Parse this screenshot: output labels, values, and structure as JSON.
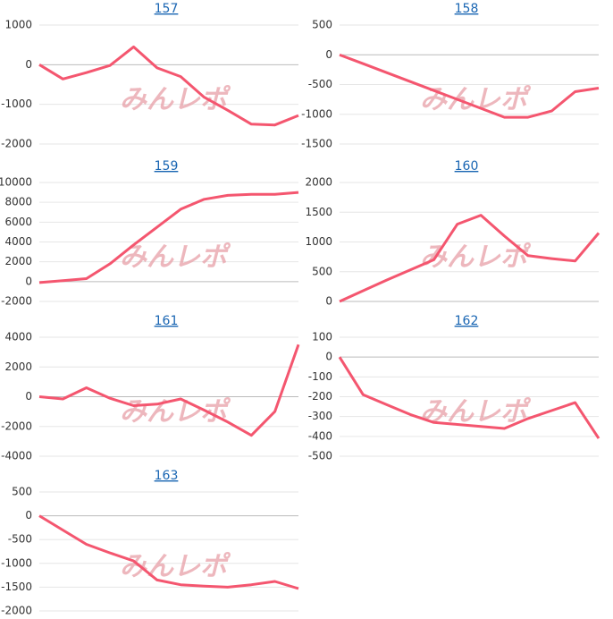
{
  "watermark": "みんレポ",
  "chart_data": [
    {
      "type": "line",
      "title": "157",
      "ylim": [
        -2000,
        1000
      ],
      "yticks": [
        1000,
        0,
        -1000,
        -2000
      ],
      "grid": true,
      "color": "#f4566f",
      "values": [
        0,
        -360,
        -200,
        -20,
        450,
        -80,
        -300,
        -820,
        -1150,
        -1500,
        -1520,
        -1280
      ]
    },
    {
      "type": "line",
      "title": "158",
      "ylim": [
        -1500,
        500
      ],
      "yticks": [
        500,
        0,
        -500,
        -1000,
        -1500
      ],
      "grid": true,
      "color": "#f4566f",
      "values": [
        0,
        -150,
        -300,
        -450,
        -600,
        -750,
        -900,
        -1050,
        -1050,
        -945,
        -620,
        -560
      ]
    },
    {
      "type": "line",
      "title": "159",
      "ylim": [
        -2000,
        10000
      ],
      "yticks": [
        10000,
        8000,
        6000,
        4000,
        2000,
        0,
        -2000
      ],
      "grid": true,
      "color": "#f4566f",
      "values": [
        -100,
        100,
        300,
        1800,
        3700,
        5500,
        7300,
        8300,
        8700,
        8800,
        8800,
        9000
      ]
    },
    {
      "type": "line",
      "title": "160",
      "ylim": [
        0,
        2000
      ],
      "yticks": [
        2000,
        1500,
        1000,
        500,
        0
      ],
      "grid": true,
      "color": "#f4566f",
      "values": [
        0,
        180,
        360,
        530,
        700,
        1300,
        1450,
        1100,
        770,
        720,
        680,
        1150
      ]
    },
    {
      "type": "line",
      "title": "161",
      "ylim": [
        -4000,
        4000
      ],
      "yticks": [
        4000,
        2000,
        0,
        -2000,
        -4000
      ],
      "grid": true,
      "color": "#f4566f",
      "values": [
        0,
        -150,
        600,
        -100,
        -600,
        -500,
        -150,
        -900,
        -1700,
        -2600,
        -1000,
        3500
      ]
    },
    {
      "type": "line",
      "title": "162",
      "ylim": [
        -500,
        100
      ],
      "yticks": [
        100,
        0,
        -100,
        -200,
        -300,
        -400,
        -500
      ],
      "grid": true,
      "color": "#f4566f",
      "values": [
        0,
        -190,
        -240,
        -290,
        -330,
        -340,
        -350,
        -360,
        -310,
        -270,
        -230,
        -410
      ]
    },
    {
      "type": "line",
      "title": "163",
      "ylim": [
        -2000,
        500
      ],
      "yticks": [
        500,
        0,
        -500,
        -1000,
        -1500,
        -2000
      ],
      "grid": true,
      "color": "#f4566f",
      "values": [
        0,
        -300,
        -600,
        -780,
        -950,
        -1350,
        -1450,
        -1480,
        -1500,
        -1450,
        -1380,
        -1530
      ]
    }
  ]
}
